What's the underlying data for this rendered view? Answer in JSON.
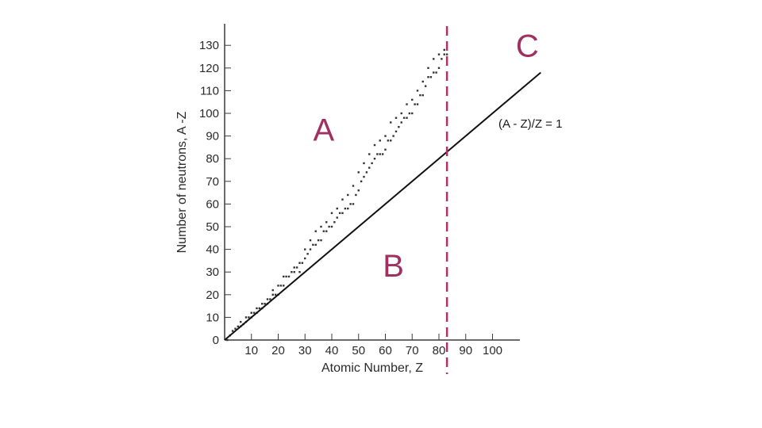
{
  "chart_data": {
    "type": "scatter",
    "xlabel": "Atomic Number, Z",
    "ylabel": "Number of neutrons, A -Z",
    "xlim": [
      0,
      110
    ],
    "ylim": [
      0,
      135
    ],
    "x_ticks": [
      10,
      20,
      30,
      40,
      50,
      60,
      70,
      80,
      90,
      100
    ],
    "y_ticks": [
      0,
      10,
      20,
      30,
      40,
      50,
      60,
      70,
      80,
      90,
      100,
      110,
      120,
      130
    ],
    "grid": false,
    "line": {
      "label": "(A - Z)/Z = 1",
      "slope": 1,
      "x_range": [
        0,
        118
      ]
    },
    "boundary_x": 83,
    "regions": [
      {
        "label": "A",
        "x": 37,
        "y": 88
      },
      {
        "label": "B",
        "x": 63,
        "y": 28
      },
      {
        "label": "C",
        "x": 113,
        "y": 125
      }
    ],
    "points": [
      [
        1,
        0
      ],
      [
        2,
        2
      ],
      [
        3,
        4
      ],
      [
        4,
        5
      ],
      [
        5,
        6
      ],
      [
        6,
        6
      ],
      [
        6,
        8
      ],
      [
        7,
        7
      ],
      [
        8,
        8
      ],
      [
        8,
        10
      ],
      [
        9,
        10
      ],
      [
        10,
        10
      ],
      [
        10,
        12
      ],
      [
        11,
        12
      ],
      [
        12,
        12
      ],
      [
        12,
        14
      ],
      [
        13,
        14
      ],
      [
        14,
        14
      ],
      [
        14,
        16
      ],
      [
        15,
        16
      ],
      [
        16,
        16
      ],
      [
        16,
        18
      ],
      [
        17,
        18
      ],
      [
        18,
        20
      ],
      [
        18,
        22
      ],
      [
        19,
        20
      ],
      [
        20,
        20
      ],
      [
        20,
        24
      ],
      [
        21,
        24
      ],
      [
        22,
        24
      ],
      [
        22,
        28
      ],
      [
        23,
        28
      ],
      [
        24,
        28
      ],
      [
        25,
        30
      ],
      [
        26,
        30
      ],
      [
        26,
        32
      ],
      [
        27,
        32
      ],
      [
        28,
        30
      ],
      [
        28,
        34
      ],
      [
        29,
        34
      ],
      [
        30,
        36
      ],
      [
        30,
        40
      ],
      [
        31,
        38
      ],
      [
        32,
        40
      ],
      [
        32,
        44
      ],
      [
        33,
        42
      ],
      [
        34,
        42
      ],
      [
        34,
        48
      ],
      [
        35,
        44
      ],
      [
        36,
        44
      ],
      [
        36,
        50
      ],
      [
        37,
        48
      ],
      [
        38,
        48
      ],
      [
        38,
        52
      ],
      [
        39,
        50
      ],
      [
        40,
        50
      ],
      [
        40,
        56
      ],
      [
        41,
        52
      ],
      [
        42,
        54
      ],
      [
        42,
        58
      ],
      [
        43,
        56
      ],
      [
        44,
        56
      ],
      [
        44,
        62
      ],
      [
        45,
        58
      ],
      [
        46,
        58
      ],
      [
        46,
        64
      ],
      [
        47,
        60
      ],
      [
        48,
        60
      ],
      [
        48,
        68
      ],
      [
        49,
        64
      ],
      [
        50,
        66
      ],
      [
        50,
        74
      ],
      [
        51,
        70
      ],
      [
        52,
        72
      ],
      [
        52,
        78
      ],
      [
        53,
        74
      ],
      [
        54,
        76
      ],
      [
        54,
        82
      ],
      [
        55,
        78
      ],
      [
        56,
        80
      ],
      [
        56,
        86
      ],
      [
        57,
        82
      ],
      [
        58,
        82
      ],
      [
        58,
        88
      ],
      [
        59,
        82
      ],
      [
        60,
        84
      ],
      [
        60,
        90
      ],
      [
        61,
        88
      ],
      [
        62,
        88
      ],
      [
        62,
        96
      ],
      [
        63,
        90
      ],
      [
        64,
        92
      ],
      [
        64,
        98
      ],
      [
        65,
        94
      ],
      [
        66,
        96
      ],
      [
        66,
        100
      ],
      [
        67,
        98
      ],
      [
        68,
        98
      ],
      [
        68,
        104
      ],
      [
        69,
        100
      ],
      [
        70,
        100
      ],
      [
        70,
        106
      ],
      [
        71,
        104
      ],
      [
        72,
        104
      ],
      [
        72,
        110
      ],
      [
        73,
        108
      ],
      [
        74,
        108
      ],
      [
        74,
        114
      ],
      [
        75,
        112
      ],
      [
        76,
        116
      ],
      [
        76,
        120
      ],
      [
        77,
        116
      ],
      [
        78,
        118
      ],
      [
        78,
        124
      ],
      [
        79,
        118
      ],
      [
        80,
        120
      ],
      [
        80,
        126
      ],
      [
        81,
        124
      ],
      [
        82,
        126
      ],
      [
        82,
        128
      ],
      [
        83,
        126
      ]
    ]
  },
  "colors": {
    "axis": "#3a3a3a",
    "line": "#111111",
    "points": "#333333",
    "boundary": "#b0306a",
    "region_label": "#a03060"
  }
}
